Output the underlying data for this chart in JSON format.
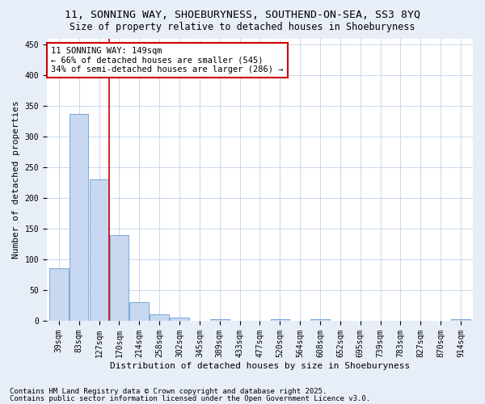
{
  "title1": "11, SONNING WAY, SHOEBURYNESS, SOUTHEND-ON-SEA, SS3 8YQ",
  "title2": "Size of property relative to detached houses in Shoeburyness",
  "xlabel": "Distribution of detached houses by size in Shoeburyness",
  "ylabel": "Number of detached properties",
  "categories": [
    "39sqm",
    "83sqm",
    "127sqm",
    "170sqm",
    "214sqm",
    "258sqm",
    "302sqm",
    "345sqm",
    "389sqm",
    "433sqm",
    "477sqm",
    "520sqm",
    "564sqm",
    "608sqm",
    "652sqm",
    "695sqm",
    "739sqm",
    "783sqm",
    "827sqm",
    "870sqm",
    "914sqm"
  ],
  "values": [
    85,
    337,
    230,
    140,
    30,
    10,
    5,
    0,
    3,
    0,
    0,
    3,
    0,
    3,
    0,
    0,
    0,
    0,
    0,
    0,
    3
  ],
  "bar_color": "#c8d8f0",
  "bar_edge_color": "#7aa8d8",
  "grid_color": "#c8d8ee",
  "bg_color": "#e8eef8",
  "plot_bg_color": "#ffffff",
  "annotation_text": "11 SONNING WAY: 149sqm\n← 66% of detached houses are smaller (545)\n34% of semi-detached houses are larger (286) →",
  "annotation_box_color": "#ffffff",
  "annotation_box_edge": "#cc0000",
  "vline_color": "#cc0000",
  "vline_x_index": 2.5,
  "ylim": [
    0,
    460
  ],
  "yticks": [
    0,
    50,
    100,
    150,
    200,
    250,
    300,
    350,
    400,
    450
  ],
  "footnote1": "Contains HM Land Registry data © Crown copyright and database right 2025.",
  "footnote2": "Contains public sector information licensed under the Open Government Licence v3.0.",
  "title_fontsize": 9.5,
  "subtitle_fontsize": 8.5,
  "axis_label_fontsize": 8,
  "tick_fontsize": 7,
  "annotation_fontsize": 7.5,
  "footnote_fontsize": 6.5
}
